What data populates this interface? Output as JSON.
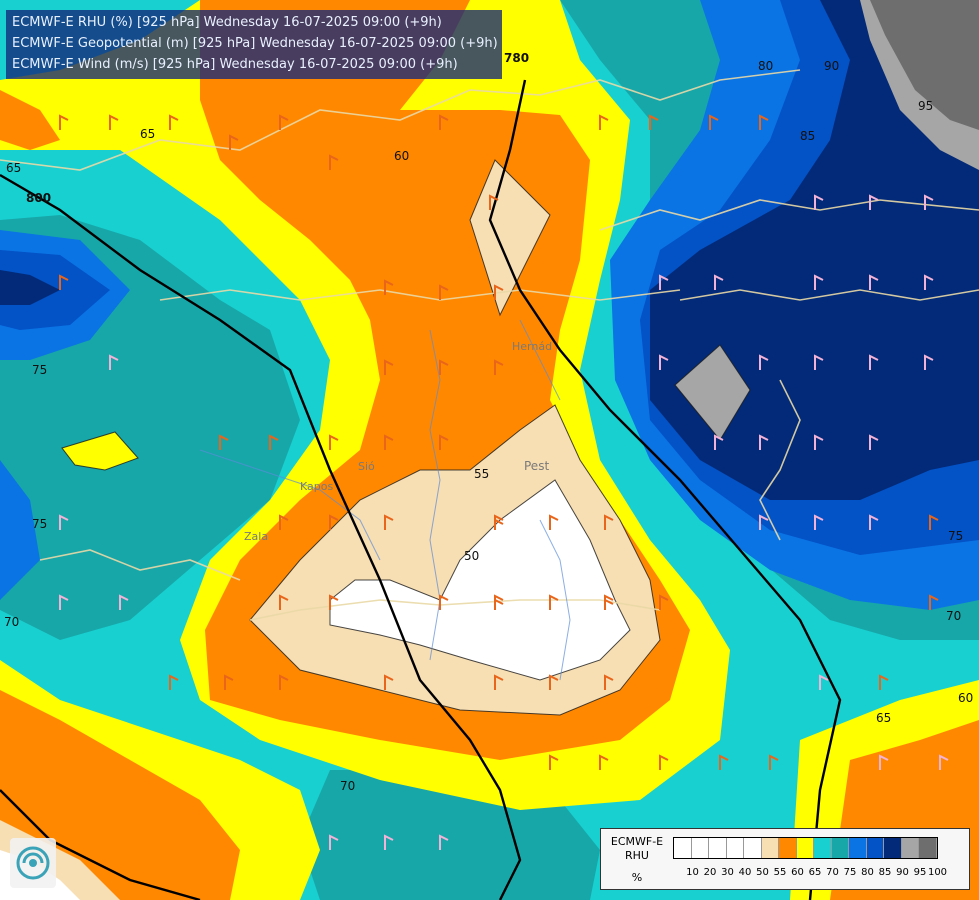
{
  "header": {
    "line1": "ECMWF-E RHU (%) [925 hPa] Wednesday 16-07-2025 09:00 (+9h)",
    "line2": "ECMWF-E Geopotential (m) [925 hPa] Wednesday 16-07-2025 09:00 (+9h)",
    "line3": "ECMWF-E Wind (m/s) [925 hPa] Wednesday 16-07-2025 09:00 (+9h)"
  },
  "map_labels": {
    "c65_a": "65",
    "c65_b": "65",
    "c65_c": "65",
    "c60_a": "60",
    "c60_b": "60",
    "c55": "55",
    "c50": "50",
    "c70_a": "70",
    "c70_b": "70",
    "c70_c": "70",
    "c75_a": "75",
    "c75_b": "75",
    "c75_c": "75",
    "c80": "80",
    "c85": "85",
    "c90": "90",
    "c95": "95",
    "g800": "800",
    "g780": "780",
    "city_pest": "Pest",
    "river_hernad": "Hernád",
    "river_sio": "Sió",
    "river_zala": "Zala",
    "river_kapos": "Kapos"
  },
  "legend": {
    "name_line1": "ECMWF-E",
    "name_line2": "RHU",
    "unit": "%",
    "colors": [
      "#ffffff",
      "#ffffff",
      "#ffffff",
      "#ffffff",
      "#ffffff",
      "#f7deb3",
      "#ff8800",
      "#ffff00",
      "#18d0d0",
      "#17a7a9",
      "#0a74e4",
      "#0352c6",
      "#022a78",
      "#a6a6a6",
      "#6e6e6e"
    ],
    "ticks": [
      "10",
      "20",
      "30",
      "40",
      "50",
      "55",
      "60",
      "65",
      "70",
      "75",
      "80",
      "85",
      "90",
      "95",
      "100"
    ]
  },
  "palette": {
    "white": "#ffffff",
    "beige": "#f7deb3",
    "orange": "#ff8800",
    "yellow": "#ffff00",
    "cyan": "#18d0d0",
    "teal": "#17a7a9",
    "blue": "#0a74e4",
    "midblue": "#0352c6",
    "navy": "#022a78",
    "grey": "#a6a6a6",
    "darkgrey": "#6e6e6e"
  }
}
